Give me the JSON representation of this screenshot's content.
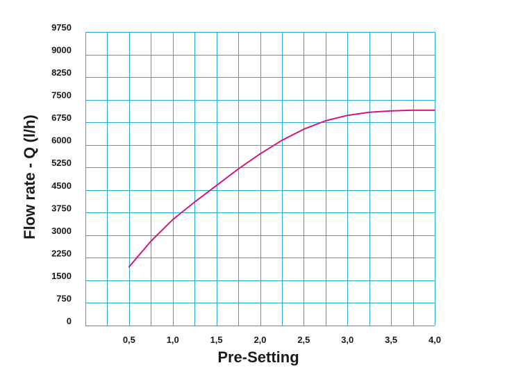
{
  "chart_data": {
    "type": "line",
    "title": "",
    "xlabel": "Pre-Setting",
    "ylabel": "Flow rate - Q (l/h)",
    "xlim": [
      0.0,
      4.0
    ],
    "ylim": [
      0,
      9750
    ],
    "x_ticks": [
      0.5,
      1.0,
      1.5,
      2.0,
      2.5,
      3.0,
      3.5,
      4.0
    ],
    "x_tick_labels": [
      "0,5",
      "1,0",
      "1,5",
      "2,0",
      "2,5",
      "3,0",
      "3,5",
      "4,0"
    ],
    "x_grid_step": 0.25,
    "y_ticks": [
      0,
      750,
      1500,
      2250,
      3000,
      3750,
      4500,
      5250,
      6000,
      6750,
      7500,
      8250,
      9000,
      9750
    ],
    "y_tick_labels": [
      "0",
      "750",
      "1500",
      "2250",
      "3000",
      "3750",
      "4500",
      "5250",
      "6000",
      "6750",
      "7500",
      "8250",
      "9000",
      "9750"
    ],
    "grid": true,
    "grid_color": "#2aa6d8",
    "series": [
      {
        "color": "#d4147c",
        "x": [
          0.5,
          0.75,
          1.0,
          1.25,
          1.5,
          1.75,
          2.0,
          2.25,
          2.5,
          2.75,
          3.0,
          3.25,
          3.5,
          3.75,
          4.0
        ],
        "y": [
          1950,
          2800,
          3520,
          4100,
          4650,
          5200,
          5700,
          6150,
          6520,
          6800,
          6980,
          7080,
          7130,
          7150,
          7150
        ]
      }
    ]
  }
}
